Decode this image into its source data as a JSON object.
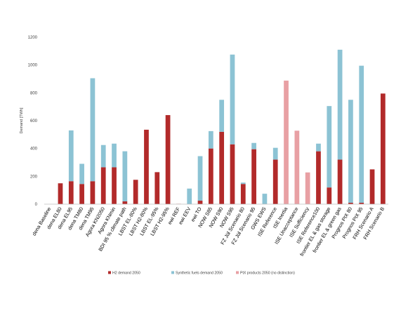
{
  "chart_data": {
    "type": "bar",
    "stacked": true,
    "ylabel": "Demand [TWh]",
    "ylim": [
      0,
      1200
    ],
    "yticks": [
      0,
      200,
      400,
      600,
      800,
      1000,
      1200
    ],
    "grid": false,
    "legend_position": "bottom",
    "categories": [
      "dena Baseline",
      "dena EL80",
      "dena EL95",
      "dena TM80",
      "dena TM95",
      "Agora KN2050",
      "Agora KNmin",
      "BDI 95 % climate path",
      "LBST EL-80%",
      "LBST H2-80%",
      "LBST EL-95%",
      "LBST H2-95%",
      "ewi REF",
      "ewi EEV",
      "ewi TO",
      "NOW S85",
      "NOW S90",
      "NOW S95",
      "FZ Jül Scenario 80",
      "FZ Jül Scenario 95",
      "GWS EWS",
      "ISE Reference",
      "ISE Inertia",
      "ISE Unacceptance",
      "ISE Sufficiency",
      "ISE Reference100",
      "frontier EL & gas storage",
      "frontier EL & green gas",
      "Prognos PtX 80",
      "Prognos PtX 95",
      "FRH Scenario A",
      "FRH Scenario B"
    ],
    "series": [
      {
        "name": "H2 demand 2050",
        "color": "#b22a2a",
        "values": [
          0,
          150,
          165,
          145,
          165,
          265,
          265,
          20,
          175,
          535,
          230,
          640,
          2,
          0,
          25,
          400,
          520,
          430,
          145,
          395,
          0,
          320,
          0,
          0,
          0,
          380,
          120,
          320,
          10,
          10,
          250,
          795
        ]
      },
      {
        "name": "Synthetic fuels demand 2050",
        "color": "#8cc3d4",
        "values": [
          0,
          0,
          365,
          145,
          740,
          160,
          170,
          360,
          0,
          0,
          0,
          0,
          0,
          112,
          320,
          125,
          230,
          645,
          10,
          45,
          75,
          85,
          0,
          0,
          0,
          55,
          585,
          790,
          740,
          985,
          0,
          0
        ]
      },
      {
        "name": "PtX products 2050 (no distinction)",
        "color": "#e8a0a4",
        "values": [
          0,
          0,
          0,
          0,
          0,
          0,
          0,
          0,
          0,
          0,
          0,
          0,
          0,
          0,
          0,
          0,
          0,
          0,
          0,
          0,
          0,
          0,
          888,
          528,
          228,
          0,
          0,
          0,
          0,
          0,
          0,
          0
        ]
      }
    ]
  }
}
